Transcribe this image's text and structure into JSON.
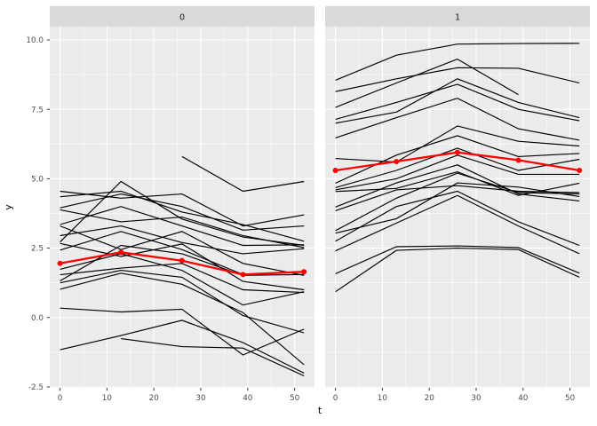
{
  "figure": {
    "kind": "faceted spaghetti plot with mean overlay",
    "facet_labels": [
      "0",
      "1"
    ]
  },
  "colors": {
    "background": "#FFFFFF",
    "panel_bg": "#EBEBEB",
    "strip_bg": "#D9D9D9",
    "grid": "#FFFFFF",
    "line": "#000000",
    "mean_line": "#FF0000",
    "tick_mark": "#333333",
    "tick_text": "#4D4D4D",
    "title_text": "#000000",
    "strip_text": "#1A1A1A"
  },
  "axes": {
    "x": {
      "title": "t",
      "tick_values": [
        0,
        10,
        20,
        30,
        40,
        50
      ],
      "tick_labels": [
        "0",
        "10",
        "20",
        "30",
        "40",
        "50"
      ],
      "minor_values": [
        5,
        15,
        25,
        35,
        45
      ],
      "domain": [
        -2.6,
        54.6
      ]
    },
    "y": {
      "title": "y",
      "tick_values": [
        10.0,
        7.5,
        5.0,
        2.5,
        0.0,
        -2.5
      ],
      "tick_labels": [
        "10.0",
        "7.5",
        "5.0",
        "2.5",
        "0.0",
        "-2.5"
      ],
      "minor_values": [
        8.75,
        6.25,
        3.75,
        1.25,
        -1.25
      ],
      "domain": [
        -2.53,
        10.48
      ]
    }
  },
  "chart_data": {
    "type": "line",
    "title": "",
    "xlabel": "t",
    "ylabel": "y",
    "x": [
      0,
      13,
      26,
      39,
      52
    ],
    "grid": true,
    "legend": false,
    "facets": [
      {
        "label": "0",
        "series": [
          [
            4.55,
            4.3,
            4.45,
            3.3,
            3.7
          ],
          [
            4.35,
            4.55,
            3.8,
            3.35,
            2.75
          ],
          [
            3.95,
            4.45,
            4.0,
            3.15,
            3.3
          ],
          [
            3.88,
            3.45,
            3.62,
            2.95,
            2.52
          ],
          [
            3.35,
            4.0,
            3.3,
            2.6,
            2.62
          ],
          [
            3.3,
            2.45,
            3.1,
            1.95,
            1.52
          ],
          [
            2.72,
            4.9,
            3.55,
            2.9,
            2.6
          ],
          [
            2.67,
            2.2,
            2.65,
            1.3,
            1.0
          ],
          [
            2.43,
            3.1,
            2.45,
            1.55,
            1.65
          ],
          [
            1.74,
            2.3,
            1.7,
            0.45,
            0.93
          ],
          [
            1.54,
            1.78,
            1.95,
            1.0,
            0.9
          ],
          [
            1.32,
            2.6,
            2.3,
            1.52,
            1.55
          ],
          [
            1.02,
            1.6,
            1.2,
            0.18,
            -1.7
          ],
          [
            1.25,
            1.7,
            1.45,
            0.07,
            -0.55
          ],
          [
            0.34,
            0.2,
            0.3,
            -1.35,
            -0.42
          ],
          [
            -1.16,
            -0.65,
            -0.1,
            -0.9,
            -2.0
          ],
          [
            null,
            -0.76,
            -1.05,
            -1.1,
            -2.1
          ],
          [
            null,
            null,
            5.8,
            4.55,
            4.9
          ],
          [
            2.95,
            3.3,
            2.7,
            2.3,
            2.48
          ]
        ],
        "mean": [
          1.95,
          2.35,
          2.05,
          1.55,
          1.65
        ]
      },
      {
        "label": "1",
        "series": [
          [
            8.55,
            9.45,
            9.85,
            9.87,
            9.88
          ],
          [
            8.14,
            8.6,
            9.0,
            8.98,
            8.45
          ],
          [
            7.57,
            8.45,
            9.31,
            8.03,
            null
          ],
          [
            7.14,
            7.75,
            8.4,
            7.5,
            7.09
          ],
          [
            7.0,
            7.4,
            8.6,
            7.75,
            7.2
          ],
          [
            6.47,
            7.2,
            7.9,
            6.8,
            6.39
          ],
          [
            5.73,
            5.6,
            6.9,
            6.35,
            6.18
          ],
          [
            4.84,
            5.85,
            6.55,
            5.8,
            5.91
          ],
          [
            4.68,
            5.3,
            6.1,
            5.3,
            5.7
          ],
          [
            4.6,
            5.0,
            5.85,
            5.16,
            5.16
          ],
          [
            4.54,
            4.65,
            5.25,
            4.4,
            4.84
          ],
          [
            3.98,
            4.85,
            5.5,
            4.45,
            4.2
          ],
          [
            3.85,
            4.6,
            4.75,
            4.55,
            4.5
          ],
          [
            3.13,
            4.3,
            5.2,
            4.5,
            4.45
          ],
          [
            3.04,
            3.56,
            4.85,
            4.7,
            4.36
          ],
          [
            2.75,
            4.0,
            4.55,
            3.45,
            2.6
          ],
          [
            2.4,
            3.4,
            4.4,
            3.3,
            2.3
          ],
          [
            1.58,
            2.55,
            2.58,
            2.52,
            1.6
          ],
          [
            0.93,
            2.42,
            2.5,
            2.45,
            1.45
          ]
        ],
        "mean": [
          5.3,
          5.62,
          5.95,
          5.67,
          5.3
        ]
      }
    ]
  }
}
